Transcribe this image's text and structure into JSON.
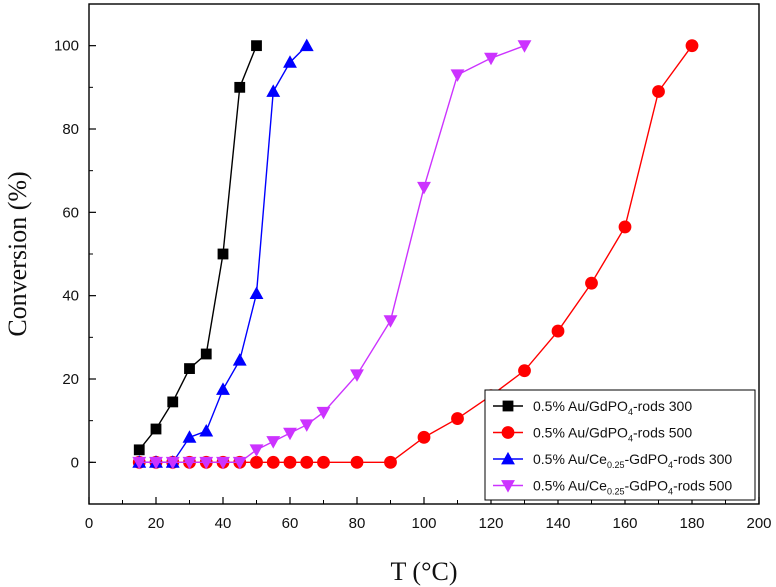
{
  "chart_data": {
    "type": "line",
    "title": "",
    "xlabel": "T (°C)",
    "ylabel": "Conversion (%)",
    "xlim": [
      0,
      200
    ],
    "ylim": [
      -10,
      110
    ],
    "xticks": [
      0,
      20,
      40,
      60,
      80,
      100,
      120,
      140,
      160,
      180,
      200
    ],
    "yticks": [
      0,
      20,
      40,
      60,
      80,
      100
    ],
    "grid": false,
    "legend_position": "bottom-right",
    "series": [
      {
        "name": "0.5% Au/GdPO4-rods 300",
        "label_parts": [
          "0.5% Au/GdPO",
          "4",
          "-rods 300"
        ],
        "marker": "square",
        "color": "#000000",
        "x": [
          15,
          20,
          25,
          30,
          35,
          40,
          45,
          50
        ],
        "y": [
          3,
          8,
          14.5,
          22.5,
          26,
          50,
          90,
          100
        ]
      },
      {
        "name": "0.5% Au/GdPO4-rods 500",
        "label_parts": [
          "0.5% Au/GdPO",
          "4",
          "-rods 500"
        ],
        "marker": "circle",
        "color": "#ff0000",
        "x": [
          15,
          20,
          25,
          30,
          35,
          40,
          45,
          50,
          55,
          60,
          65,
          70,
          80,
          90,
          100,
          110,
          120,
          130,
          140,
          150,
          160,
          170,
          180
        ],
        "y": [
          0,
          0,
          0,
          0,
          0,
          0,
          0,
          0,
          0,
          0,
          0,
          0,
          0,
          0,
          6,
          10.5,
          16,
          22,
          31.5,
          43,
          56.5,
          89,
          100
        ]
      },
      {
        "name": "0.5% Au/Ce0.25-GdPO4-rods 300",
        "label_parts": [
          "0.5% Au/Ce",
          "0.25",
          "-GdPO",
          "4",
          "-rods 300"
        ],
        "marker": "triangle-up",
        "color": "#0000ff",
        "x": [
          15,
          20,
          25,
          30,
          35,
          40,
          45,
          50,
          55,
          60,
          65
        ],
        "y": [
          0,
          0,
          0,
          6,
          7.5,
          17.5,
          24.5,
          40.5,
          89,
          96,
          100
        ]
      },
      {
        "name": "0.5% Au/Ce0.25-GdPO4-rods 500",
        "label_parts": [
          "0.5% Au/Ce",
          "0.25",
          "-GdPO",
          "4",
          "-rods 500"
        ],
        "marker": "triangle-down",
        "color": "#cc33ff",
        "x": [
          15,
          20,
          25,
          30,
          35,
          40,
          45,
          50,
          55,
          60,
          65,
          70,
          80,
          90,
          100,
          110,
          120,
          130
        ],
        "y": [
          0,
          0,
          0,
          0,
          0,
          0,
          0,
          3,
          5,
          7,
          9,
          12,
          21,
          34,
          66,
          93,
          97,
          100
        ]
      }
    ]
  }
}
